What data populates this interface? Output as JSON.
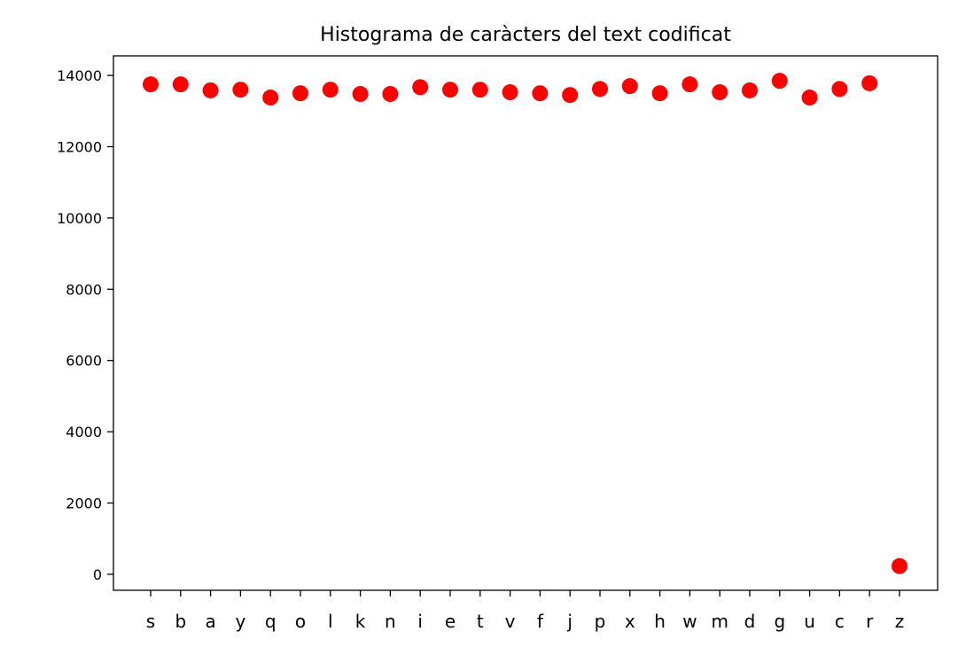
{
  "chart_data": {
    "type": "scatter",
    "title": "Histograma de caràcters del text codificat",
    "xlabel": "",
    "ylabel": "",
    "categories": [
      "s",
      "b",
      "a",
      "y",
      "q",
      "o",
      "l",
      "k",
      "n",
      "i",
      "e",
      "t",
      "v",
      "f",
      "j",
      "p",
      "x",
      "h",
      "w",
      "m",
      "d",
      "g",
      "u",
      "c",
      "r",
      "z"
    ],
    "values": [
      13750,
      13750,
      13580,
      13600,
      13380,
      13500,
      13600,
      13480,
      13480,
      13670,
      13600,
      13600,
      13530,
      13500,
      13450,
      13620,
      13700,
      13500,
      13750,
      13530,
      13580,
      13850,
      13380,
      13620,
      13780,
      230
    ],
    "yticks": [
      0,
      2000,
      4000,
      6000,
      8000,
      10000,
      12000,
      14000
    ],
    "ylim": [
      -450,
      14550
    ],
    "marker_color": "#ff0000",
    "grid": false,
    "legend": "none"
  }
}
